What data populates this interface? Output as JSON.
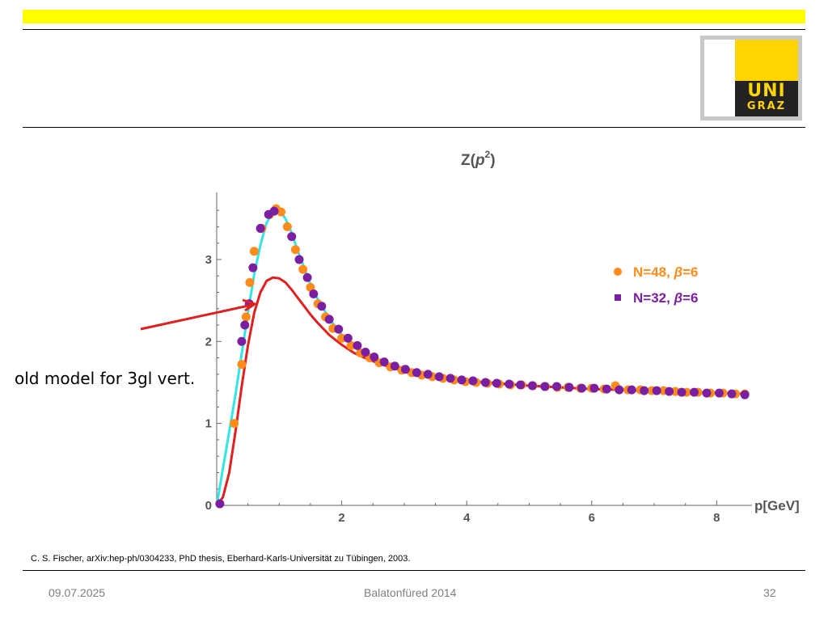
{
  "slide": {
    "annotation": "old model for 3gl vert.",
    "citation": "C. S. Fischer, arXiv:hep-ph/0304233, PhD thesis, Eberhard-Karls-Universität zu Tübingen, 2003.",
    "footer": {
      "date": "09.07.2025",
      "event": "Balatonfüred 2014",
      "page": "32"
    },
    "logo": {
      "line1": "UNI",
      "line2": "GRAZ"
    },
    "colors": {
      "top_bar": "#ffff00",
      "logo_yellow": "#ffd400",
      "logo_black": "#222222",
      "arrow": "#e02020"
    }
  },
  "chart_data": {
    "type": "scatter",
    "title_main": "Z(",
    "title_var": "p",
    "title_exp": "2",
    "title_close": ")",
    "xlabel": "p[GeV]",
    "xlim": [
      0,
      8.5
    ],
    "ylim": [
      0,
      3.7
    ],
    "xticks": [
      {
        "value": 2,
        "label": "2"
      },
      {
        "value": 4,
        "label": "4"
      },
      {
        "value": 6,
        "label": "6"
      },
      {
        "value": 8,
        "label": "8"
      }
    ],
    "yticks": [
      {
        "value": 0,
        "label": "0"
      },
      {
        "value": 1,
        "label": "1"
      },
      {
        "value": 2,
        "label": "2"
      },
      {
        "value": 3,
        "label": "3"
      }
    ],
    "legend_placement": "right",
    "legend": [
      {
        "prefix": "N=48, ",
        "sym": "β",
        "suffix": "=6",
        "color": "#ff8c1a"
      },
      {
        "prefix": "N=32, ",
        "sym": "β",
        "suffix": "=6",
        "color": "#7b1fa2"
      }
    ],
    "series": [
      {
        "color": "#ff8c1a",
        "marker": "circle",
        "x": [
          0.05,
          0.28,
          0.4,
          0.47,
          0.53,
          0.6,
          0.72,
          0.85,
          0.95,
          1.03,
          1.13,
          1.26,
          1.38,
          1.5,
          1.62,
          1.74,
          1.86,
          2.0,
          2.15,
          2.3,
          2.45,
          2.6,
          2.78,
          2.96,
          3.12,
          3.28,
          3.45,
          3.62,
          3.8,
          3.98,
          4.15,
          4.33,
          4.52,
          4.7,
          4.88,
          5.06,
          5.26,
          5.45,
          5.62,
          5.82,
          6.0,
          6.2,
          6.38,
          6.58,
          6.78,
          6.96,
          7.15,
          7.34,
          7.52,
          7.7,
          7.9,
          8.1,
          8.3,
          8.45
        ],
        "y": [
          0.02,
          1.0,
          1.72,
          2.3,
          2.72,
          3.1,
          3.38,
          3.55,
          3.62,
          3.58,
          3.4,
          3.12,
          2.88,
          2.66,
          2.46,
          2.3,
          2.16,
          2.04,
          1.95,
          1.86,
          1.8,
          1.74,
          1.69,
          1.65,
          1.62,
          1.59,
          1.57,
          1.55,
          1.53,
          1.51,
          1.5,
          1.49,
          1.48,
          1.47,
          1.47,
          1.46,
          1.45,
          1.44,
          1.44,
          1.43,
          1.43,
          1.42,
          1.46,
          1.41,
          1.41,
          1.4,
          1.4,
          1.39,
          1.38,
          1.38,
          1.37,
          1.37,
          1.36,
          1.36
        ]
      },
      {
        "color": "#7b1fa2",
        "marker": "square",
        "x": [
          0.05,
          0.4,
          0.45,
          0.52,
          0.58,
          0.7,
          0.83,
          0.92,
          1.2,
          1.32,
          1.45,
          1.55,
          1.68,
          1.8,
          1.95,
          2.1,
          2.25,
          2.38,
          2.52,
          2.68,
          2.85,
          3.02,
          3.2,
          3.38,
          3.56,
          3.74,
          3.92,
          4.1,
          4.3,
          4.48,
          4.68,
          4.86,
          5.05,
          5.25,
          5.44,
          5.64,
          5.84,
          6.04,
          6.24,
          6.44,
          6.64,
          6.84,
          7.04,
          7.24,
          7.44,
          7.64,
          7.84,
          8.04,
          8.24,
          8.45
        ],
        "y": [
          0.02,
          2.0,
          2.2,
          2.46,
          2.9,
          3.38,
          3.55,
          3.59,
          3.28,
          3.0,
          2.78,
          2.58,
          2.43,
          2.27,
          2.15,
          2.04,
          1.95,
          1.87,
          1.81,
          1.75,
          1.7,
          1.66,
          1.62,
          1.6,
          1.57,
          1.55,
          1.53,
          1.52,
          1.5,
          1.49,
          1.48,
          1.47,
          1.46,
          1.45,
          1.45,
          1.44,
          1.43,
          1.43,
          1.42,
          1.41,
          1.41,
          1.4,
          1.4,
          1.39,
          1.38,
          1.38,
          1.37,
          1.37,
          1.36,
          1.35
        ]
      }
    ],
    "fit_curve": {
      "color": "#33e5e5",
      "x": [
        0,
        0.1,
        0.2,
        0.3,
        0.4,
        0.5,
        0.6,
        0.7,
        0.8,
        0.9,
        1.0,
        1.1,
        1.2,
        1.3,
        1.4,
        1.5,
        1.6,
        1.8,
        2.0,
        2.2,
        2.4,
        2.6,
        2.8,
        3.0,
        3.2,
        3.5,
        3.8,
        4.0,
        4.5,
        5.0,
        5.5,
        6.0,
        6.5,
        7.0,
        7.5,
        8.0,
        8.5
      ],
      "y": [
        0,
        0.45,
        0.9,
        1.35,
        1.85,
        2.35,
        2.82,
        3.18,
        3.45,
        3.58,
        3.6,
        3.5,
        3.32,
        3.1,
        2.9,
        2.7,
        2.54,
        2.28,
        2.08,
        1.94,
        1.84,
        1.76,
        1.7,
        1.65,
        1.61,
        1.56,
        1.53,
        1.51,
        1.48,
        1.46,
        1.44,
        1.42,
        1.41,
        1.39,
        1.38,
        1.37,
        1.36
      ]
    },
    "model_curve": {
      "color": "#e02020",
      "x": [
        0,
        0.1,
        0.2,
        0.3,
        0.4,
        0.5,
        0.6,
        0.7,
        0.8,
        0.9,
        1.0,
        1.1,
        1.2,
        1.3,
        1.4,
        1.5,
        1.6,
        1.8,
        2.0,
        2.2,
        2.4,
        2.6,
        2.8,
        3.0,
        3.2,
        3.5,
        3.8,
        4.0,
        4.5,
        5.0,
        5.5,
        6.0,
        6.5,
        7.0,
        7.5,
        8.0,
        8.5
      ],
      "y": [
        0,
        0.1,
        0.4,
        0.9,
        1.45,
        1.95,
        2.35,
        2.6,
        2.74,
        2.78,
        2.77,
        2.72,
        2.63,
        2.53,
        2.43,
        2.33,
        2.24,
        2.08,
        1.96,
        1.86,
        1.79,
        1.73,
        1.68,
        1.64,
        1.61,
        1.57,
        1.54,
        1.52,
        1.49,
        1.46,
        1.44,
        1.42,
        1.41,
        1.39,
        1.38,
        1.37,
        1.36
      ]
    }
  }
}
